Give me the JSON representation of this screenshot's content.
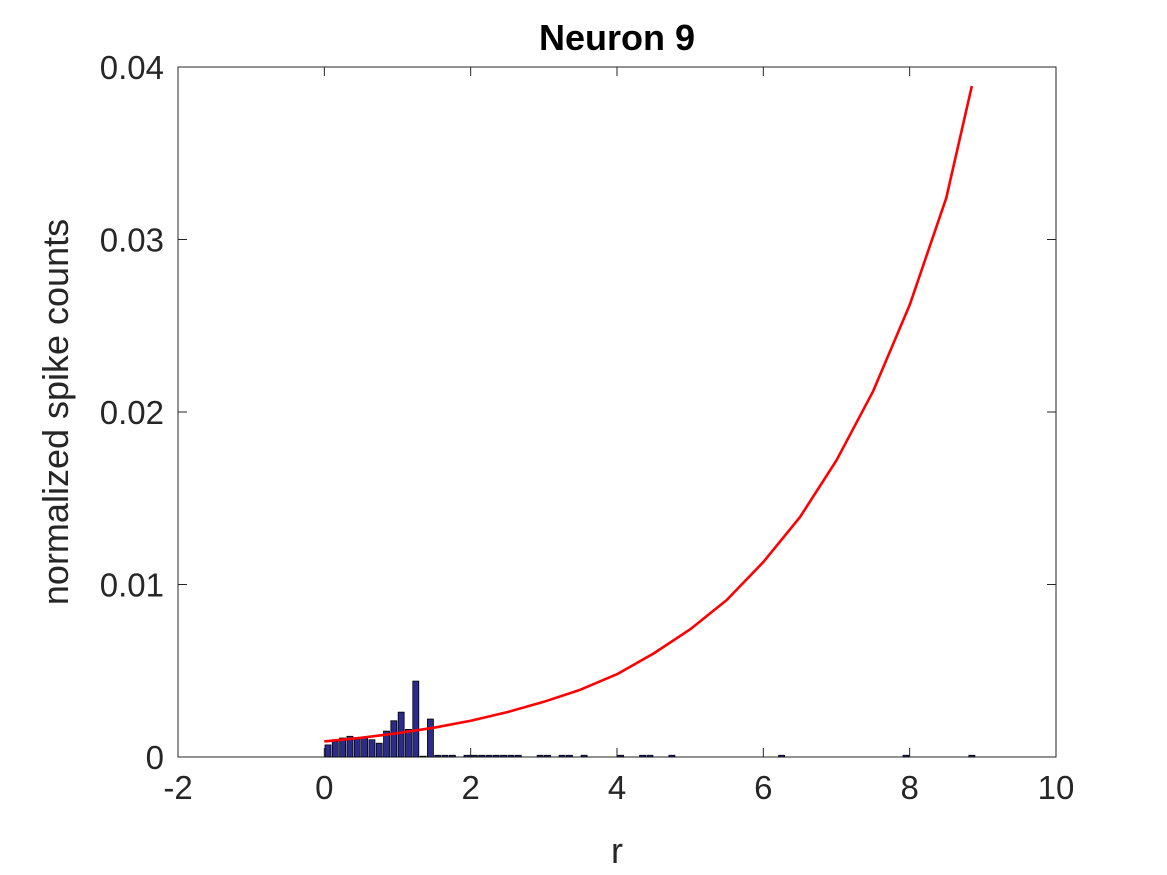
{
  "chart_data": {
    "type": "bar",
    "title": "Neuron 9",
    "xlabel": "r",
    "ylabel": "normalized spike counts",
    "xlim": [
      -2,
      10
    ],
    "ylim": [
      0,
      0.04
    ],
    "xticks": [
      -2,
      0,
      2,
      4,
      6,
      8,
      10
    ],
    "xtick_labels": [
      "-2",
      "0",
      "2",
      "4",
      "6",
      "8",
      "10"
    ],
    "yticks": [
      0,
      0.01,
      0.02,
      0.03,
      0.04
    ],
    "ytick_labels": [
      "0",
      "0.01",
      "0.02",
      "0.03",
      "0.04"
    ],
    "grid": false,
    "histogram": {
      "bin_width": 0.1,
      "bar_color": "#2b2b8c",
      "edge_color": "#000000",
      "bins": [
        {
          "x": 0.05,
          "value": 0.0007
        },
        {
          "x": 0.15,
          "value": 0.0009
        },
        {
          "x": 0.25,
          "value": 0.0011
        },
        {
          "x": 0.35,
          "value": 0.0012
        },
        {
          "x": 0.45,
          "value": 0.0011
        },
        {
          "x": 0.55,
          "value": 0.0011
        },
        {
          "x": 0.65,
          "value": 0.001
        },
        {
          "x": 0.75,
          "value": 0.0008
        },
        {
          "x": 0.85,
          "value": 0.0015
        },
        {
          "x": 0.95,
          "value": 0.0021
        },
        {
          "x": 1.05,
          "value": 0.0026
        },
        {
          "x": 1.15,
          "value": 0.0016
        },
        {
          "x": 1.25,
          "value": 0.0044
        },
        {
          "x": 1.35,
          "value": 0.0
        },
        {
          "x": 1.45,
          "value": 0.0022
        },
        {
          "x": 1.55,
          "value": 0.0001
        },
        {
          "x": 1.65,
          "value": 0.0001
        },
        {
          "x": 1.75,
          "value": 0.0001
        },
        {
          "x": 1.95,
          "value": 0.0001
        },
        {
          "x": 2.05,
          "value": 0.0001
        },
        {
          "x": 2.15,
          "value": 0.0001
        },
        {
          "x": 2.25,
          "value": 0.0001
        },
        {
          "x": 2.35,
          "value": 0.0001
        },
        {
          "x": 2.45,
          "value": 0.0001
        },
        {
          "x": 2.55,
          "value": 0.0001
        },
        {
          "x": 2.65,
          "value": 0.0001
        },
        {
          "x": 2.95,
          "value": 0.0001
        },
        {
          "x": 3.05,
          "value": 0.0001
        },
        {
          "x": 3.25,
          "value": 0.0001
        },
        {
          "x": 3.35,
          "value": 0.0001
        },
        {
          "x": 3.55,
          "value": 0.0001
        },
        {
          "x": 4.05,
          "value": 0.0001
        },
        {
          "x": 4.35,
          "value": 0.0001
        },
        {
          "x": 4.45,
          "value": 0.0001
        },
        {
          "x": 4.75,
          "value": 0.0001
        },
        {
          "x": 6.25,
          "value": 0.0001
        },
        {
          "x": 7.95,
          "value": 0.0001
        },
        {
          "x": 8.85,
          "value": 0.0001
        }
      ]
    },
    "fit_curve": {
      "type": "line",
      "color": "#ff0000",
      "x_start": 0,
      "x_end": 8.85,
      "points": [
        {
          "x": 0.0,
          "y": 0.0009
        },
        {
          "x": 0.5,
          "y": 0.00111
        },
        {
          "x": 1.0,
          "y": 0.00138
        },
        {
          "x": 1.5,
          "y": 0.0017
        },
        {
          "x": 2.0,
          "y": 0.0021
        },
        {
          "x": 2.5,
          "y": 0.0026
        },
        {
          "x": 3.0,
          "y": 0.0032
        },
        {
          "x": 3.5,
          "y": 0.0039
        },
        {
          "x": 4.0,
          "y": 0.0048
        },
        {
          "x": 4.5,
          "y": 0.006
        },
        {
          "x": 5.0,
          "y": 0.0074
        },
        {
          "x": 5.5,
          "y": 0.0091
        },
        {
          "x": 6.0,
          "y": 0.0113
        },
        {
          "x": 6.5,
          "y": 0.0139
        },
        {
          "x": 7.0,
          "y": 0.0172
        },
        {
          "x": 7.5,
          "y": 0.0212
        },
        {
          "x": 8.0,
          "y": 0.0262
        },
        {
          "x": 8.5,
          "y": 0.0324
        },
        {
          "x": 8.85,
          "y": 0.0389
        }
      ]
    }
  }
}
